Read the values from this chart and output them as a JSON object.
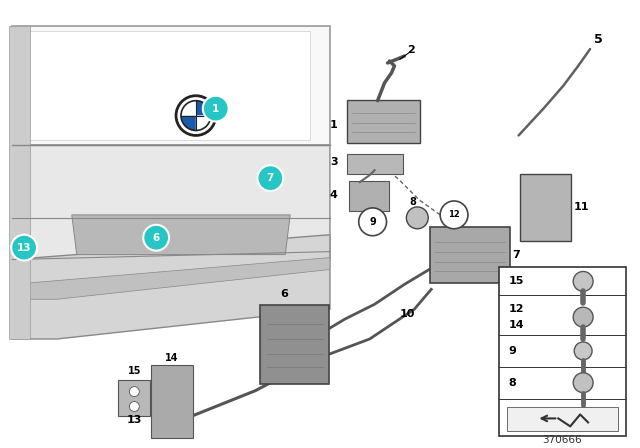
{
  "bg_color": "#ffffff",
  "diagram_number": "370666",
  "teal_color": "#26c6c6",
  "fig_width": 6.4,
  "fig_height": 4.48,
  "dpi": 100,
  "car_body": {
    "outline_color": "#888888",
    "fill_light": "#f0f0f0",
    "fill_mid": "#e0e0e0",
    "fill_dark": "#c8c8c8"
  },
  "component_color": "#a0a0a0",
  "cable_color": "#606060",
  "text_color": "#000000",
  "legend_border": "#333333"
}
